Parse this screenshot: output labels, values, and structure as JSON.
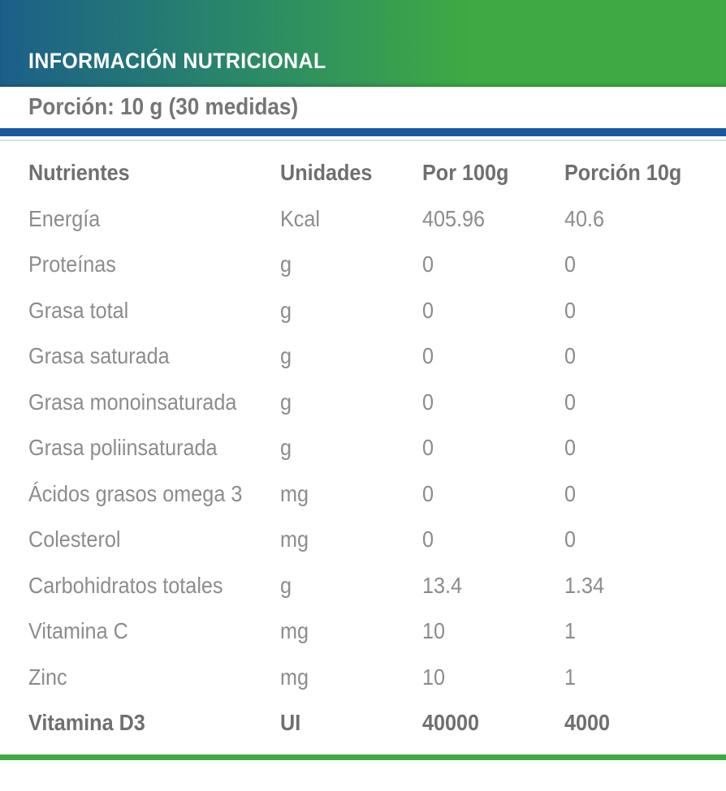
{
  "header": {
    "title": "INFORMACIÓN NUTRICIONAL"
  },
  "serving": {
    "label": "Porción: 10 g (30 medidas)"
  },
  "table": {
    "columns": [
      "Nutrientes",
      "Unidades",
      "Por 100g",
      "Porción 10g"
    ],
    "rows": [
      {
        "nutrient": "Energía",
        "unit": "Kcal",
        "per100": "405.96",
        "portion": "40.6",
        "bold": false
      },
      {
        "nutrient": "Proteínas",
        "unit": "g",
        "per100": "0",
        "portion": "0",
        "bold": false
      },
      {
        "nutrient": "Grasa total",
        "unit": "g",
        "per100": "0",
        "portion": "0",
        "bold": false
      },
      {
        "nutrient": "Grasa saturada",
        "unit": "g",
        "per100": "0",
        "portion": "0",
        "bold": false
      },
      {
        "nutrient": "Grasa monoinsaturada",
        "unit": "g",
        "per100": "0",
        "portion": "0",
        "bold": false
      },
      {
        "nutrient": "Grasa poliinsaturada",
        "unit": "g",
        "per100": "0",
        "portion": "0",
        "bold": false
      },
      {
        "nutrient": "Ácidos grasos omega 3",
        "unit": "mg",
        "per100": "0",
        "portion": "0",
        "bold": false
      },
      {
        "nutrient": "Colesterol",
        "unit": "mg",
        "per100": "0",
        "portion": "0",
        "bold": false
      },
      {
        "nutrient": "Carbohidratos totales",
        "unit": "g",
        "per100": "13.4",
        "portion": "1.34",
        "bold": false
      },
      {
        "nutrient": "Vitamina C",
        "unit": "mg",
        "per100": "10",
        "portion": "1",
        "bold": false
      },
      {
        "nutrient": "Zinc",
        "unit": "mg",
        "per100": "10",
        "portion": "1",
        "bold": false
      },
      {
        "nutrient": "Vitamina D3",
        "unit": "UI",
        "per100": "40000",
        "portion": "4000",
        "bold": true
      }
    ]
  },
  "colors": {
    "gradient_left": "#1b5f8a",
    "gradient_mid": "#2b8a66",
    "green": "#3faa43",
    "blue_bar": "#1659a0",
    "text_body": "#8c8c8c",
    "text_bold": "#6f6f6f",
    "faint_line": "#dcdcdc"
  }
}
